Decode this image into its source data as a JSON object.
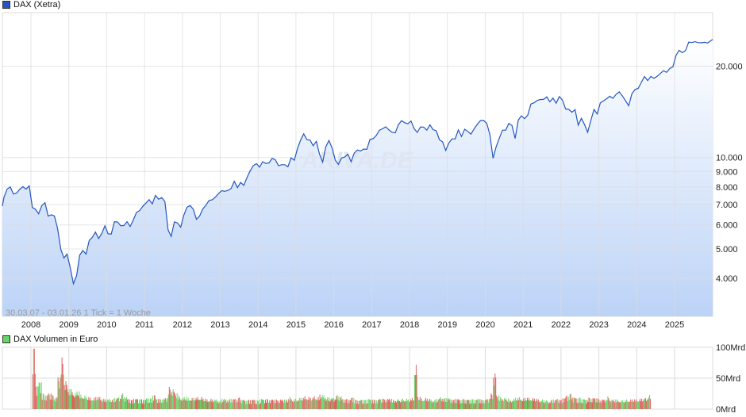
{
  "colors": {
    "line": "#2456c0",
    "fill_top": "#ffffff",
    "fill_bottom": "#bcd3f7",
    "grid": "#dcdcdc",
    "vol_up": "#66d466",
    "vol_down": "#e06060",
    "legend_price": "#2456c0",
    "legend_volume": "#66d466"
  },
  "chart_data": [
    {
      "type": "area",
      "legend": "DAX (Xetra)",
      "legend_placement": "top-left",
      "info": "30.03.07 - 03.01.26   1 Tick = 1 Woche",
      "watermark": "ARIVA.DE",
      "yscale": "log",
      "ylim": [
        3000,
        30000
      ],
      "xlim": [
        "2007-03-30",
        "2026-01-03"
      ],
      "grid": true,
      "x_ticks": [
        "2008",
        "2009",
        "2010",
        "2011",
        "2012",
        "2013",
        "2014",
        "2015",
        "2016",
        "2017",
        "2018",
        "2019",
        "2020",
        "2021",
        "2022",
        "2023",
        "2024",
        "2025"
      ],
      "y_ticks": [
        {
          "v": 4000,
          "label": "4.000"
        },
        {
          "v": 5000,
          "label": "5.000"
        },
        {
          "v": 6000,
          "label": "6.000"
        },
        {
          "v": 7000,
          "label": "7.000"
        },
        {
          "v": 8000,
          "label": "8.000"
        },
        {
          "v": 9000,
          "label": "9.000"
        },
        {
          "v": 10000,
          "label": "10.000"
        },
        {
          "v": 20000,
          "label": "20.000"
        }
      ],
      "points": [
        [
          "2007-03",
          6917
        ],
        [
          "2007-04",
          7400
        ],
        [
          "2007-05",
          7880
        ],
        [
          "2007-06",
          8000
        ],
        [
          "2007-07",
          7580
        ],
        [
          "2007-08",
          7640
        ],
        [
          "2007-09",
          7860
        ],
        [
          "2007-10",
          8020
        ],
        [
          "2007-11",
          7870
        ],
        [
          "2007-12",
          8070
        ],
        [
          "2008-01",
          6850
        ],
        [
          "2008-02",
          6750
        ],
        [
          "2008-03",
          6530
        ],
        [
          "2008-04",
          6950
        ],
        [
          "2008-05",
          7100
        ],
        [
          "2008-06",
          6420
        ],
        [
          "2008-07",
          6480
        ],
        [
          "2008-08",
          6420
        ],
        [
          "2008-09",
          5830
        ],
        [
          "2008-10",
          4990
        ],
        [
          "2008-11",
          4670
        ],
        [
          "2008-12",
          4810
        ],
        [
          "2009-01",
          4340
        ],
        [
          "2009-02",
          3840
        ],
        [
          "2009-03",
          4080
        ],
        [
          "2009-04",
          4770
        ],
        [
          "2009-05",
          4940
        ],
        [
          "2009-06",
          4810
        ],
        [
          "2009-07",
          5330
        ],
        [
          "2009-08",
          5460
        ],
        [
          "2009-09",
          5680
        ],
        [
          "2009-10",
          5410
        ],
        [
          "2009-11",
          5630
        ],
        [
          "2009-12",
          5960
        ],
        [
          "2010-01",
          5610
        ],
        [
          "2010-02",
          5600
        ],
        [
          "2010-03",
          6150
        ],
        [
          "2010-04",
          6140
        ],
        [
          "2010-05",
          5960
        ],
        [
          "2010-06",
          5970
        ],
        [
          "2010-07",
          6150
        ],
        [
          "2010-08",
          5930
        ],
        [
          "2010-09",
          6230
        ],
        [
          "2010-10",
          6600
        ],
        [
          "2010-11",
          6690
        ],
        [
          "2010-12",
          6910
        ],
        [
          "2011-01",
          7080
        ],
        [
          "2011-02",
          7270
        ],
        [
          "2011-03",
          7040
        ],
        [
          "2011-04",
          7510
        ],
        [
          "2011-05",
          7290
        ],
        [
          "2011-06",
          7380
        ],
        [
          "2011-07",
          7160
        ],
        [
          "2011-08",
          5780
        ],
        [
          "2011-09",
          5500
        ],
        [
          "2011-10",
          6140
        ],
        [
          "2011-11",
          6090
        ],
        [
          "2011-12",
          5900
        ],
        [
          "2012-01",
          6460
        ],
        [
          "2012-02",
          6860
        ],
        [
          "2012-03",
          6950
        ],
        [
          "2012-04",
          6760
        ],
        [
          "2012-05",
          6260
        ],
        [
          "2012-06",
          6420
        ],
        [
          "2012-07",
          6770
        ],
        [
          "2012-08",
          6970
        ],
        [
          "2012-09",
          7220
        ],
        [
          "2012-10",
          7260
        ],
        [
          "2012-11",
          7410
        ],
        [
          "2012-12",
          7610
        ],
        [
          "2013-01",
          7780
        ],
        [
          "2013-02",
          7740
        ],
        [
          "2013-03",
          7800
        ],
        [
          "2013-04",
          7910
        ],
        [
          "2013-05",
          8350
        ],
        [
          "2013-06",
          7960
        ],
        [
          "2013-07",
          8280
        ],
        [
          "2013-08",
          8100
        ],
        [
          "2013-09",
          8590
        ],
        [
          "2013-10",
          9030
        ],
        [
          "2013-11",
          9400
        ],
        [
          "2013-12",
          9550
        ],
        [
          "2014-01",
          9300
        ],
        [
          "2014-02",
          9690
        ],
        [
          "2014-03",
          9560
        ],
        [
          "2014-04",
          9600
        ],
        [
          "2014-05",
          9940
        ],
        [
          "2014-06",
          9830
        ],
        [
          "2014-07",
          9410
        ],
        [
          "2014-08",
          9470
        ],
        [
          "2014-09",
          9470
        ],
        [
          "2014-10",
          9330
        ],
        [
          "2014-11",
          9980
        ],
        [
          "2014-12",
          9800
        ],
        [
          "2015-01",
          10690
        ],
        [
          "2015-02",
          11400
        ],
        [
          "2015-03",
          11970
        ],
        [
          "2015-04",
          11450
        ],
        [
          "2015-05",
          11410
        ],
        [
          "2015-06",
          10940
        ],
        [
          "2015-07",
          11310
        ],
        [
          "2015-08",
          10260
        ],
        [
          "2015-09",
          9660
        ],
        [
          "2015-10",
          10850
        ],
        [
          "2015-11",
          11380
        ],
        [
          "2015-12",
          10740
        ],
        [
          "2016-01",
          9800
        ],
        [
          "2016-02",
          9500
        ],
        [
          "2016-03",
          9970
        ],
        [
          "2016-04",
          10040
        ],
        [
          "2016-05",
          10260
        ],
        [
          "2016-06",
          9680
        ],
        [
          "2016-07",
          10340
        ],
        [
          "2016-08",
          10590
        ],
        [
          "2016-09",
          10510
        ],
        [
          "2016-10",
          10670
        ],
        [
          "2016-11",
          10640
        ],
        [
          "2016-12",
          11480
        ],
        [
          "2017-01",
          11540
        ],
        [
          "2017-02",
          11830
        ],
        [
          "2017-03",
          12310
        ],
        [
          "2017-04",
          12440
        ],
        [
          "2017-05",
          12620
        ],
        [
          "2017-06",
          12330
        ],
        [
          "2017-07",
          12120
        ],
        [
          "2017-08",
          12060
        ],
        [
          "2017-09",
          12830
        ],
        [
          "2017-10",
          13230
        ],
        [
          "2017-11",
          13020
        ],
        [
          "2017-12",
          12920
        ],
        [
          "2018-01",
          13190
        ],
        [
          "2018-02",
          12440
        ],
        [
          "2018-03",
          12100
        ],
        [
          "2018-04",
          12610
        ],
        [
          "2018-05",
          12600
        ],
        [
          "2018-06",
          12310
        ],
        [
          "2018-07",
          12810
        ],
        [
          "2018-08",
          12360
        ],
        [
          "2018-09",
          12250
        ],
        [
          "2018-10",
          11450
        ],
        [
          "2018-11",
          11260
        ],
        [
          "2018-12",
          10560
        ],
        [
          "2019-01",
          11170
        ],
        [
          "2019-02",
          11520
        ],
        [
          "2019-03",
          11530
        ],
        [
          "2019-04",
          12340
        ],
        [
          "2019-05",
          11730
        ],
        [
          "2019-06",
          12400
        ],
        [
          "2019-07",
          12190
        ],
        [
          "2019-08",
          11940
        ],
        [
          "2019-09",
          12430
        ],
        [
          "2019-10",
          12870
        ],
        [
          "2019-11",
          13240
        ],
        [
          "2019-12",
          13250
        ],
        [
          "2020-01",
          12980
        ],
        [
          "2020-02",
          11890
        ],
        [
          "2020-03",
          9940
        ],
        [
          "2020-04",
          10860
        ],
        [
          "2020-05",
          11590
        ],
        [
          "2020-06",
          12310
        ],
        [
          "2020-07",
          12310
        ],
        [
          "2020-08",
          12950
        ],
        [
          "2020-09",
          12760
        ],
        [
          "2020-10",
          11560
        ],
        [
          "2020-11",
          13290
        ],
        [
          "2020-12",
          13720
        ],
        [
          "2021-01",
          13430
        ],
        [
          "2021-02",
          13790
        ],
        [
          "2021-03",
          15010
        ],
        [
          "2021-04",
          15140
        ],
        [
          "2021-05",
          15420
        ],
        [
          "2021-06",
          15530
        ],
        [
          "2021-07",
          15540
        ],
        [
          "2021-08",
          15840
        ],
        [
          "2021-09",
          15260
        ],
        [
          "2021-10",
          15690
        ],
        [
          "2021-11",
          15100
        ],
        [
          "2021-12",
          15880
        ],
        [
          "2022-01",
          15470
        ],
        [
          "2022-02",
          14460
        ],
        [
          "2022-03",
          14410
        ],
        [
          "2022-04",
          14100
        ],
        [
          "2022-05",
          14390
        ],
        [
          "2022-06",
          12780
        ],
        [
          "2022-07",
          13480
        ],
        [
          "2022-08",
          12830
        ],
        [
          "2022-09",
          12110
        ],
        [
          "2022-10",
          13250
        ],
        [
          "2022-11",
          14400
        ],
        [
          "2022-12",
          13920
        ],
        [
          "2023-01",
          15130
        ],
        [
          "2023-02",
          15370
        ],
        [
          "2023-03",
          15630
        ],
        [
          "2023-04",
          15920
        ],
        [
          "2023-05",
          15660
        ],
        [
          "2023-06",
          16150
        ],
        [
          "2023-07",
          16450
        ],
        [
          "2023-08",
          15950
        ],
        [
          "2023-09",
          15390
        ],
        [
          "2023-10",
          14810
        ],
        [
          "2023-11",
          16220
        ],
        [
          "2023-12",
          16750
        ],
        [
          "2024-01",
          16900
        ],
        [
          "2024-02",
          17680
        ],
        [
          "2024-03",
          18490
        ],
        [
          "2024-04",
          17930
        ],
        [
          "2024-05",
          18500
        ],
        [
          "2024-06",
          18240
        ],
        [
          "2024-07",
          18510
        ],
        [
          "2024-08",
          18910
        ],
        [
          "2024-09",
          19320
        ],
        [
          "2024-10",
          19080
        ],
        [
          "2024-11",
          19630
        ],
        [
          "2024-12",
          19910
        ],
        [
          "2025-01",
          21730
        ],
        [
          "2025-02",
          22550
        ],
        [
          "2025-03",
          22160
        ],
        [
          "2025-04",
          22500
        ],
        [
          "2025-05",
          23990
        ],
        [
          "2025-06",
          23910
        ],
        [
          "2025-07",
          24070
        ],
        [
          "2025-08",
          23900
        ],
        [
          "2025-09",
          23880
        ],
        [
          "2025-10",
          23960
        ],
        [
          "2025-11",
          23840
        ],
        [
          "2025-12",
          24490
        ]
      ]
    },
    {
      "type": "bar",
      "legend": "DAX Volumen in Euro",
      "legend_placement": "top-left",
      "ylim": [
        0,
        100
      ],
      "grid": true,
      "y_ticks": [
        {
          "v": 0,
          "label": "0Mrd"
        },
        {
          "v": 50,
          "label": "50Mrd"
        },
        {
          "v": 100,
          "label": "100Mrd"
        }
      ],
      "unit": "Mrd",
      "start": "2008-01",
      "values": [
        80,
        30,
        35,
        20,
        18,
        20,
        18,
        15,
        40,
        65,
        35,
        25,
        25,
        20,
        22,
        18,
        17,
        15,
        14,
        14,
        15,
        15,
        13,
        12,
        13,
        13,
        14,
        15,
        20,
        15,
        13,
        12,
        13,
        13,
        13,
        12,
        14,
        14,
        18,
        13,
        13,
        13,
        14,
        28,
        25,
        20,
        17,
        14,
        15,
        14,
        14,
        14,
        15,
        15,
        13,
        12,
        13,
        12,
        12,
        11,
        13,
        12,
        13,
        13,
        13,
        15,
        12,
        11,
        12,
        12,
        12,
        11,
        13,
        12,
        13,
        12,
        12,
        12,
        12,
        12,
        12,
        15,
        12,
        13,
        14,
        14,
        16,
        15,
        14,
        16,
        15,
        18,
        17,
        15,
        14,
        14,
        18,
        16,
        13,
        13,
        12,
        15,
        12,
        11,
        12,
        12,
        13,
        12,
        12,
        12,
        13,
        13,
        13,
        13,
        12,
        12,
        12,
        13,
        13,
        12,
        14,
        55,
        15,
        13,
        14,
        13,
        12,
        12,
        13,
        15,
        14,
        14,
        13,
        12,
        13,
        12,
        13,
        12,
        12,
        13,
        12,
        13,
        12,
        12,
        13,
        20,
        45,
        17,
        15,
        14,
        13,
        12,
        13,
        14,
        15,
        13,
        14,
        14,
        14,
        13,
        12,
        12,
        11,
        10,
        12,
        12,
        13,
        12,
        14,
        17,
        20,
        15,
        14,
        15,
        13,
        12,
        15,
        14,
        14,
        13,
        12,
        12,
        16,
        12,
        12,
        12,
        11,
        11,
        12,
        12,
        12,
        12,
        13,
        13,
        14,
        18
      ]
    }
  ]
}
